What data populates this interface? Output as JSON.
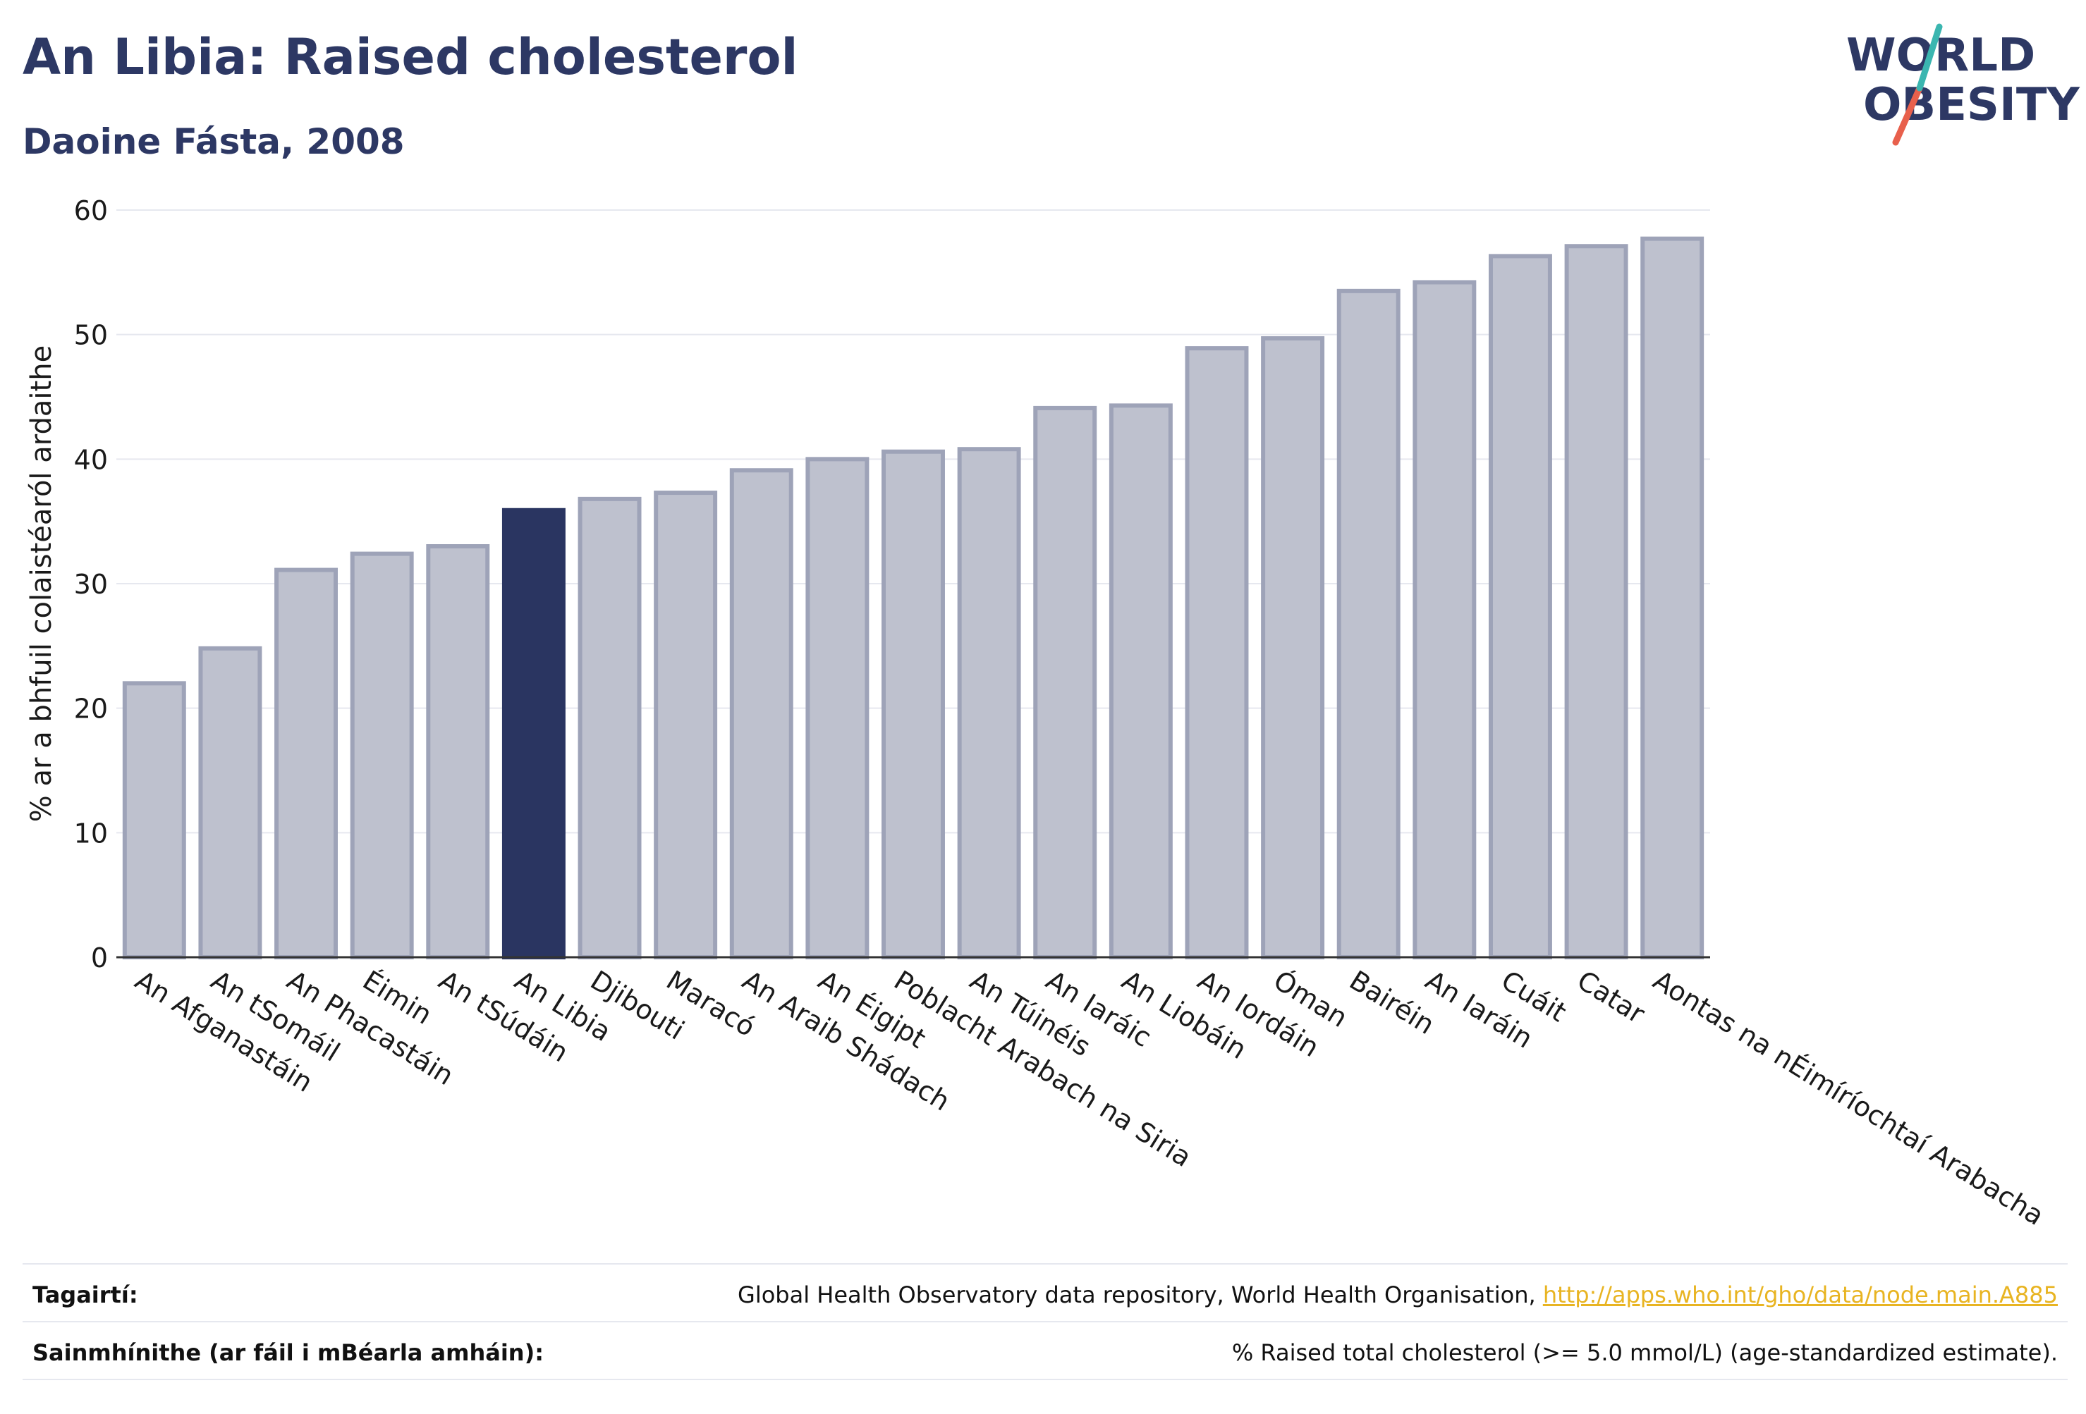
{
  "header": {
    "title": "An Libia: Raised cholesterol",
    "subtitle": "Daoine Fásta, 2008"
  },
  "logo": {
    "line1": "WORLD",
    "line2": "OBESITY",
    "accent_teal": "#3bb6b0",
    "accent_red": "#e8604c",
    "color": "#2d3864"
  },
  "chart_data": {
    "type": "bar",
    "title": "An Libia: Raised cholesterol",
    "subtitle": "Daoine Fásta, 2008",
    "xlabel": "",
    "ylabel": "% ar a bhfuil colaistéaról ardaithe",
    "ylim": [
      0,
      60
    ],
    "yticks": [
      0,
      10,
      20,
      30,
      40,
      50,
      60
    ],
    "grid": true,
    "highlight": "An Libia",
    "colors": {
      "bar": "#bec1ce",
      "bar_edge": "#9ea3b8",
      "highlight": "#2a3561"
    },
    "categories": [
      "An Afganastáin",
      "An tSomáil",
      "An Phacastáin",
      "Éimin",
      "An tSúdáin",
      "An Libia",
      "Djibouti",
      "Maracó",
      "An Araib Shádach",
      "An Éigipt",
      "Poblacht Arabach na Siria",
      "An Túinéis",
      "An Iaráic",
      "An Liobáin",
      "An Iordáin",
      "Óman",
      "Bairéin",
      "An Iaráin",
      "Cuáit",
      "Catar",
      "Aontas na nÉimíríochtaí Arabacha"
    ],
    "values": [
      22.0,
      24.8,
      31.1,
      32.4,
      33.0,
      35.9,
      36.8,
      37.3,
      39.1,
      40.0,
      40.6,
      40.8,
      44.1,
      44.3,
      48.9,
      49.7,
      53.5,
      54.2,
      56.3,
      57.1,
      57.7
    ]
  },
  "footer": {
    "ref_label": "Tagairtí:",
    "ref_text": "Global Health Observatory data repository, World Health Organisation, ",
    "ref_link": "http://apps.who.int/gho/data/node.main.A885",
    "def_label": "Sainmhínithe (ar fáil i mBéarla amháin):",
    "def_text": "% Raised total cholesterol (>= 5.0 mmol/L) (age-standardized estimate)."
  }
}
